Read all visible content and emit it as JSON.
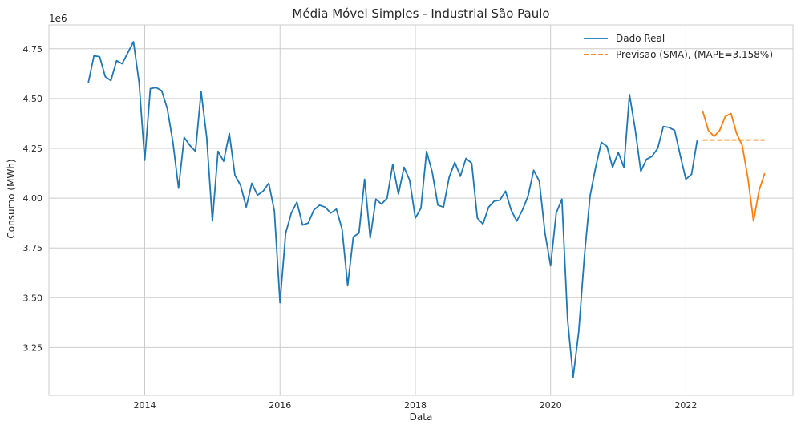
{
  "chart_data": {
    "type": "line",
    "title": "Média Móvel Simples - Industrial São Paulo",
    "xlabel": "Data",
    "ylabel": "Consumo (MWh)",
    "y_offset_label": "1e6",
    "x_tick_labels": [
      "2014",
      "2016",
      "2018",
      "2020",
      "2022"
    ],
    "y_tick_labels": [
      "3.25",
      "3.50",
      "3.75",
      "4.00",
      "4.25",
      "4.50",
      "4.75"
    ],
    "xlim": [
      "2012-08",
      "2023-08"
    ],
    "ylim": [
      3.01,
      4.87
    ],
    "grid": true,
    "legend_position": "top-right",
    "series": [
      {
        "name": "Dado Real",
        "color": "#1f77b4",
        "style": "solid",
        "points": [
          [
            "2013-03",
            4.58
          ],
          [
            "2013-04",
            4.715
          ],
          [
            "2013-05",
            4.71
          ],
          [
            "2013-06",
            4.61
          ],
          [
            "2013-07",
            4.59
          ],
          [
            "2013-08",
            4.69
          ],
          [
            "2013-09",
            4.675
          ],
          [
            "2013-10",
            4.73
          ],
          [
            "2013-11",
            4.785
          ],
          [
            "2013-12",
            4.58
          ],
          [
            "2014-01",
            4.19
          ],
          [
            "2014-02",
            4.55
          ],
          [
            "2014-03",
            4.555
          ],
          [
            "2014-04",
            4.54
          ],
          [
            "2014-05",
            4.45
          ],
          [
            "2014-06",
            4.28
          ],
          [
            "2014-07",
            4.05
          ],
          [
            "2014-08",
            4.305
          ],
          [
            "2014-09",
            4.265
          ],
          [
            "2014-10",
            4.235
          ],
          [
            "2014-11",
            4.535
          ],
          [
            "2014-12",
            4.305
          ],
          [
            "2015-01",
            3.885
          ],
          [
            "2015-02",
            4.235
          ],
          [
            "2015-03",
            4.185
          ],
          [
            "2015-04",
            4.325
          ],
          [
            "2015-05",
            4.115
          ],
          [
            "2015-06",
            4.065
          ],
          [
            "2015-07",
            3.955
          ],
          [
            "2015-08",
            4.075
          ],
          [
            "2015-09",
            4.015
          ],
          [
            "2015-10",
            4.035
          ],
          [
            "2015-11",
            4.075
          ],
          [
            "2015-12",
            3.935
          ],
          [
            "2016-01",
            3.475
          ],
          [
            "2016-02",
            3.825
          ],
          [
            "2016-03",
            3.925
          ],
          [
            "2016-04",
            3.98
          ],
          [
            "2016-05",
            3.865
          ],
          [
            "2016-06",
            3.875
          ],
          [
            "2016-07",
            3.94
          ],
          [
            "2016-08",
            3.965
          ],
          [
            "2016-09",
            3.955
          ],
          [
            "2016-10",
            3.925
          ],
          [
            "2016-11",
            3.945
          ],
          [
            "2016-12",
            3.845
          ],
          [
            "2017-01",
            3.56
          ],
          [
            "2017-02",
            3.805
          ],
          [
            "2017-03",
            3.825
          ],
          [
            "2017-04",
            4.095
          ],
          [
            "2017-05",
            3.8
          ],
          [
            "2017-06",
            3.995
          ],
          [
            "2017-07",
            3.97
          ],
          [
            "2017-08",
            4.0
          ],
          [
            "2017-09",
            4.17
          ],
          [
            "2017-10",
            4.02
          ],
          [
            "2017-11",
            4.155
          ],
          [
            "2017-12",
            4.09
          ],
          [
            "2018-01",
            3.9
          ],
          [
            "2018-02",
            3.95
          ],
          [
            "2018-03",
            4.235
          ],
          [
            "2018-04",
            4.13
          ],
          [
            "2018-05",
            3.965
          ],
          [
            "2018-06",
            3.955
          ],
          [
            "2018-07",
            4.105
          ],
          [
            "2018-08",
            4.18
          ],
          [
            "2018-09",
            4.11
          ],
          [
            "2018-10",
            4.2
          ],
          [
            "2018-11",
            4.175
          ],
          [
            "2018-12",
            3.9
          ],
          [
            "2019-01",
            3.87
          ],
          [
            "2019-02",
            3.955
          ],
          [
            "2019-03",
            3.985
          ],
          [
            "2019-04",
            3.99
          ],
          [
            "2019-05",
            4.035
          ],
          [
            "2019-06",
            3.94
          ],
          [
            "2019-07",
            3.885
          ],
          [
            "2019-08",
            3.94
          ],
          [
            "2019-09",
            4.01
          ],
          [
            "2019-10",
            4.14
          ],
          [
            "2019-11",
            4.085
          ],
          [
            "2019-12",
            3.825
          ],
          [
            "2020-01",
            3.66
          ],
          [
            "2020-02",
            3.925
          ],
          [
            "2020-03",
            3.995
          ],
          [
            "2020-04",
            3.395
          ],
          [
            "2020-05",
            3.1
          ],
          [
            "2020-06",
            3.33
          ],
          [
            "2020-07",
            3.71
          ],
          [
            "2020-08",
            4.01
          ],
          [
            "2020-09",
            4.155
          ],
          [
            "2020-10",
            4.28
          ],
          [
            "2020-11",
            4.26
          ],
          [
            "2020-12",
            4.155
          ],
          [
            "2021-01",
            4.23
          ],
          [
            "2021-02",
            4.155
          ],
          [
            "2021-03",
            4.52
          ],
          [
            "2021-04",
            4.345
          ],
          [
            "2021-05",
            4.135
          ],
          [
            "2021-06",
            4.195
          ],
          [
            "2021-07",
            4.21
          ],
          [
            "2021-08",
            4.25
          ],
          [
            "2021-09",
            4.36
          ],
          [
            "2021-10",
            4.355
          ],
          [
            "2021-11",
            4.34
          ],
          [
            "2021-12",
            4.215
          ],
          [
            "2022-01",
            4.095
          ],
          [
            "2022-02",
            4.12
          ],
          [
            "2022-03",
            4.29
          ]
        ]
      },
      {
        "name": "Dado Real",
        "color": "#ff7f0e",
        "style": "solid",
        "in_legend": false,
        "points": [
          [
            "2022-04",
            4.435
          ],
          [
            "2022-05",
            4.34
          ],
          [
            "2022-06",
            4.31
          ],
          [
            "2022-07",
            4.34
          ],
          [
            "2022-08",
            4.41
          ],
          [
            "2022-09",
            4.425
          ],
          [
            "2022-10",
            4.325
          ],
          [
            "2022-11",
            4.265
          ],
          [
            "2022-12",
            4.1
          ],
          [
            "2023-01",
            3.885
          ],
          [
            "2023-02",
            4.04
          ],
          [
            "2023-03",
            4.125
          ]
        ]
      },
      {
        "name": "Previsao (SMA), (MAPE=3.158%)",
        "color": "#ff7f0e",
        "style": "dashed",
        "points": [
          [
            "2022-04",
            4.292
          ],
          [
            "2022-05",
            4.292
          ],
          [
            "2022-06",
            4.292
          ],
          [
            "2022-07",
            4.292
          ],
          [
            "2022-08",
            4.292
          ],
          [
            "2022-09",
            4.292
          ],
          [
            "2022-10",
            4.292
          ],
          [
            "2022-11",
            4.292
          ],
          [
            "2022-12",
            4.292
          ],
          [
            "2023-01",
            4.292
          ],
          [
            "2023-02",
            4.292
          ],
          [
            "2023-03",
            4.292
          ]
        ]
      }
    ]
  }
}
